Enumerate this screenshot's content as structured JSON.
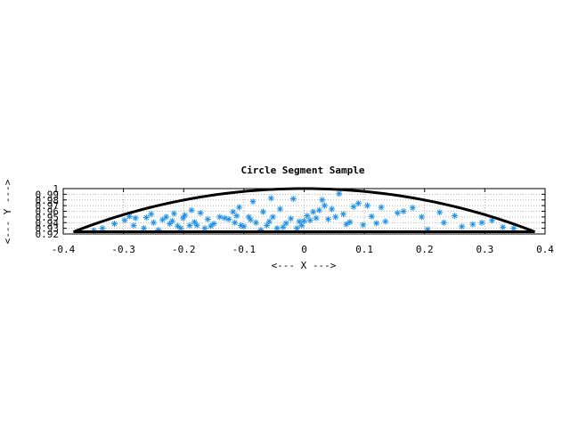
{
  "chart_data": {
    "type": "scatter",
    "title": "Circle Segment Sample",
    "xlabel": "<--- X --->",
    "ylabel": "<--- Y --->",
    "xlim": [
      -0.4,
      0.4
    ],
    "ylim": [
      0.92,
      1.0
    ],
    "x_ticks": [
      "-0.4",
      "-0.3",
      "-0.2",
      "-0.1",
      "0",
      "0.1",
      "0.2",
      "0.3",
      "0.4"
    ],
    "y_ticks": [
      "0.92",
      "0.93",
      "0.94",
      "0.95",
      "0.96",
      "0.97",
      "0.98",
      "0.99",
      "1"
    ],
    "grid": true,
    "boundary": {
      "arc": {
        "radius": 1.0,
        "x_from": -0.383,
        "x_to": 0.383
      },
      "chord": {
        "y": 0.924,
        "x_from": -0.383,
        "x_to": 0.383
      },
      "color": "#000000"
    },
    "series": [
      {
        "marker": "asterisk",
        "color": "#1E90E6",
        "x": [
          -0.349,
          -0.335,
          -0.315,
          -0.298,
          -0.29,
          -0.283,
          -0.28,
          -0.266,
          -0.262,
          -0.254,
          -0.25,
          -0.242,
          -0.235,
          -0.229,
          -0.223,
          -0.219,
          -0.216,
          -0.21,
          -0.205,
          -0.201,
          -0.198,
          -0.19,
          -0.187,
          -0.182,
          -0.178,
          -0.172,
          -0.165,
          -0.16,
          -0.155,
          -0.15,
          -0.14,
          -0.132,
          -0.125,
          -0.118,
          -0.115,
          -0.112,
          -0.108,
          -0.105,
          -0.1,
          -0.092,
          -0.089,
          -0.085,
          -0.08,
          -0.072,
          -0.068,
          -0.062,
          -0.058,
          -0.055,
          -0.052,
          -0.045,
          -0.04,
          -0.035,
          -0.03,
          -0.022,
          -0.018,
          -0.012,
          -0.008,
          -0.004,
          0.0,
          0.005,
          0.01,
          0.015,
          0.02,
          0.025,
          0.03,
          0.034,
          0.04,
          0.046,
          0.052,
          0.058,
          0.065,
          0.07,
          0.076,
          0.082,
          0.09,
          0.098,
          0.105,
          0.112,
          0.12,
          0.128,
          0.135,
          0.155,
          0.165,
          0.18,
          0.195,
          0.205,
          0.225,
          0.232,
          0.25,
          0.262,
          0.28,
          0.295,
          0.312,
          0.33,
          0.348
        ],
        "y": [
          0.926,
          0.93,
          0.938,
          0.944,
          0.951,
          0.935,
          0.948,
          0.93,
          0.949,
          0.955,
          0.94,
          0.927,
          0.945,
          0.95,
          0.938,
          0.943,
          0.956,
          0.934,
          0.93,
          0.948,
          0.953,
          0.935,
          0.962,
          0.941,
          0.935,
          0.957,
          0.93,
          0.946,
          0.934,
          0.938,
          0.95,
          0.948,
          0.946,
          0.959,
          0.94,
          0.952,
          0.967,
          0.935,
          0.933,
          0.95,
          0.945,
          0.977,
          0.94,
          0.927,
          0.959,
          0.935,
          0.942,
          0.983,
          0.95,
          0.93,
          0.964,
          0.932,
          0.939,
          0.947,
          0.982,
          0.93,
          0.942,
          0.935,
          0.943,
          0.952,
          0.944,
          0.959,
          0.948,
          0.962,
          0.98,
          0.97,
          0.946,
          0.964,
          0.95,
          0.991,
          0.955,
          0.937,
          0.941,
          0.968,
          0.974,
          0.936,
          0.97,
          0.951,
          0.939,
          0.967,
          0.942,
          0.957,
          0.96,
          0.966,
          0.95,
          0.928,
          0.958,
          0.94,
          0.952,
          0.933,
          0.937,
          0.94,
          0.944,
          0.932,
          0.93
        ]
      }
    ]
  }
}
